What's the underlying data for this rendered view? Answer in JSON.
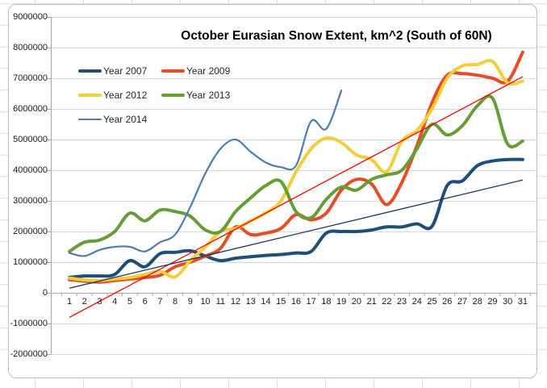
{
  "chart": {
    "title": "October Eurasian Snow Extent, km^2 (South of 60N)"
  },
  "chart_data": {
    "type": "line",
    "title": "October Eurasian Snow Extent, km^2 (South of 60N)",
    "xlabel": "",
    "ylabel": "",
    "x": [
      1,
      2,
      3,
      4,
      5,
      6,
      7,
      8,
      9,
      10,
      11,
      12,
      13,
      14,
      15,
      16,
      17,
      18,
      19,
      20,
      21,
      22,
      23,
      24,
      25,
      26,
      27,
      28,
      29,
      30,
      31
    ],
    "x_tick_labels": [
      "1",
      "2",
      "3",
      "4",
      "5",
      "6",
      "7",
      "8",
      "9",
      "10",
      "11",
      "12",
      "13",
      "14",
      "15",
      "16",
      "17",
      "18",
      "19",
      "20",
      "21",
      "22",
      "23",
      "24",
      "25",
      "26",
      "27",
      "28",
      "29",
      "30",
      "31"
    ],
    "y_tick_labels": [
      "9000000",
      "8000000",
      "7000000",
      "6000000",
      "5000000",
      "4000000",
      "3000000",
      "2000000",
      "1000000",
      "0",
      "-1000000",
      "-2000000"
    ],
    "ylim": [
      -2000000,
      9000000
    ],
    "y_gridline_step": 1000000,
    "grid": true,
    "smoothed_lines": true,
    "legend_position": "top-left-inside",
    "series": [
      {
        "name": "Year 2007",
        "color": "#1F4E79",
        "width": 4,
        "values": [
          500000,
          550000,
          550000,
          600000,
          1050000,
          850000,
          1280000,
          1320000,
          1370000,
          1200000,
          1050000,
          1130000,
          1180000,
          1220000,
          1250000,
          1300000,
          1350000,
          1950000,
          2000000,
          2000000,
          2050000,
          2150000,
          2150000,
          2250000,
          2170000,
          3500000,
          3650000,
          4150000,
          4300000,
          4350000,
          4350000
        ]
      },
      {
        "name": "Year 2009",
        "color": "#E84C22",
        "width": 4,
        "values": [
          430000,
          380000,
          350000,
          400000,
          450000,
          500000,
          570000,
          850000,
          1000000,
          1200000,
          1450000,
          2150000,
          1900000,
          1950000,
          2100000,
          2550000,
          2380000,
          2600000,
          3350000,
          3700000,
          3550000,
          2880000,
          3600000,
          4800000,
          6200000,
          7100000,
          7150000,
          7100000,
          7000000,
          6900000,
          7850000
        ]
      },
      {
        "name": "Year 2012",
        "color": "#F2CE3A",
        "width": 4,
        "values": [
          480000,
          420000,
          400000,
          450000,
          500000,
          600000,
          700000,
          520000,
          1050000,
          1500000,
          2000000,
          2100000,
          2350000,
          2600000,
          3000000,
          3950000,
          4700000,
          5050000,
          4900000,
          4500000,
          4350000,
          3950000,
          4950000,
          5300000,
          6000000,
          7000000,
          7400000,
          7450000,
          7550000,
          6850000,
          6900000
        ]
      },
      {
        "name": "Year 2013",
        "color": "#669D34",
        "width": 4,
        "values": [
          1350000,
          1650000,
          1720000,
          2000000,
          2600000,
          2350000,
          2700000,
          2650000,
          2500000,
          2050000,
          2000000,
          2650000,
          3100000,
          3500000,
          3630000,
          2650000,
          2450000,
          3050000,
          3450000,
          3350000,
          3700000,
          3850000,
          4000000,
          4700000,
          5500000,
          5150000,
          5450000,
          6100000,
          6350000,
          4850000,
          4950000
        ]
      },
      {
        "name": "Year 2014",
        "color": "#4E7CB0",
        "width": 2.2,
        "values": [
          1300000,
          1200000,
          1400000,
          1500000,
          1500000,
          1350000,
          1650000,
          1900000,
          2800000,
          3900000,
          4700000,
          5000000,
          4600000,
          4250000,
          4100000,
          4150000,
          5600000,
          5350000,
          6600000
        ]
      }
    ],
    "trendlines": [
      {
        "name": "linear-trend-red",
        "color": "#FF0000",
        "width": 1.3,
        "start_day": 1,
        "start_value": -800000,
        "end_day": 31,
        "end_value": 7050000
      },
      {
        "name": "linear-trend-dark",
        "color": "#17365D",
        "width": 1.3,
        "start_day": 1,
        "start_value": 150000,
        "end_day": 31,
        "end_value": 3680000
      }
    ],
    "colors": {
      "gridline": "#d9d9d9",
      "axis_line": "#a6a6a6",
      "chart_border": "#b9bec6"
    }
  }
}
